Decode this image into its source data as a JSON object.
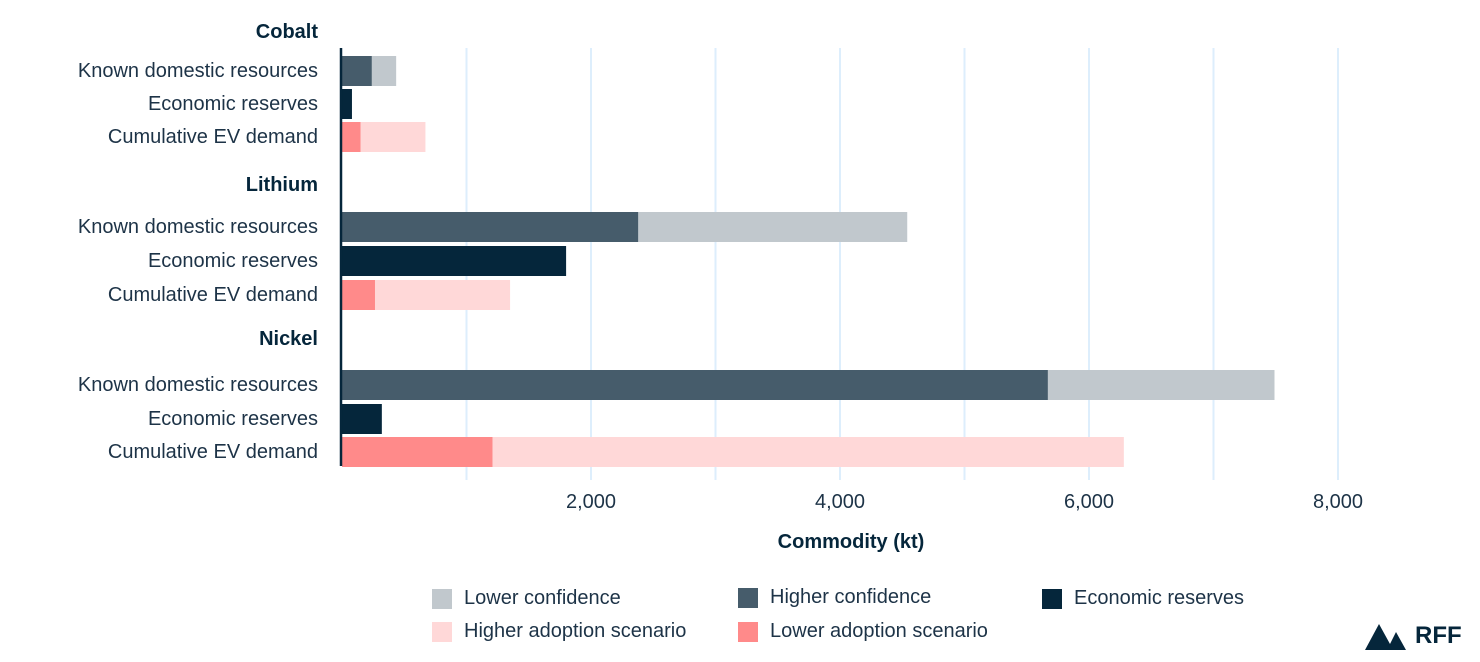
{
  "chart_data": {
    "type": "bar",
    "orientation": "horizontal",
    "stacked": true,
    "xlabel": "Commodity (kt)",
    "xlim": [
      0,
      8000
    ],
    "xticks": [
      2000,
      4000,
      6000,
      8000
    ],
    "xtick_labels": [
      "2,000",
      "4,000",
      "6,000",
      "8,000"
    ],
    "gridlines": [
      1000,
      2000,
      3000,
      4000,
      5000,
      6000,
      7000,
      8000
    ],
    "grid": true,
    "legend_placement": "bottom",
    "groups": [
      {
        "name": "Cobalt",
        "rows": [
          {
            "label": "Known domestic resources",
            "segments": [
              {
                "series": "Higher confidence",
                "value": 240
              },
              {
                "series": "Lower confidence",
                "value": 195
              }
            ]
          },
          {
            "label": "Economic reserves",
            "segments": [
              {
                "series": "Economic reserves",
                "value": 80
              }
            ]
          },
          {
            "label": "Cumulative EV demand",
            "segments": [
              {
                "series": "Lower adoption scenario",
                "value": 150
              },
              {
                "series": "Higher adoption scenario",
                "value": 520
              }
            ]
          }
        ]
      },
      {
        "name": "Lithium",
        "rows": [
          {
            "label": "Known domestic resources",
            "segments": [
              {
                "series": "Higher confidence",
                "value": 2380
              },
              {
                "series": "Lower confidence",
                "value": 2160
              }
            ]
          },
          {
            "label": "Economic reserves",
            "segments": [
              {
                "series": "Economic reserves",
                "value": 1800
              }
            ]
          },
          {
            "label": "Cumulative EV demand",
            "segments": [
              {
                "series": "Lower adoption scenario",
                "value": 265
              },
              {
                "series": "Higher adoption scenario",
                "value": 1085
              }
            ]
          }
        ]
      },
      {
        "name": "Nickel",
        "rows": [
          {
            "label": "Known domestic resources",
            "segments": [
              {
                "series": "Higher confidence",
                "value": 5670
              },
              {
                "series": "Lower confidence",
                "value": 1820
              }
            ]
          },
          {
            "label": "Economic reserves",
            "segments": [
              {
                "series": "Economic reserves",
                "value": 320
              }
            ]
          },
          {
            "label": "Cumulative EV demand",
            "segments": [
              {
                "series": "Lower adoption scenario",
                "value": 1210
              },
              {
                "series": "Higher adoption scenario",
                "value": 5070
              }
            ]
          }
        ]
      }
    ],
    "legend": [
      {
        "name": "Lower confidence",
        "color": "#c1c8cd"
      },
      {
        "name": "Higher confidence",
        "color": "#465c6b"
      },
      {
        "name": "Economic reserves",
        "color": "#05263b"
      },
      {
        "name": "Higher adoption scenario",
        "color": "#ffd8d8"
      },
      {
        "name": "Lower adoption scenario",
        "color": "#ff8a8a"
      }
    ],
    "gridline_color": "#ddeefc"
  },
  "logo": {
    "text": "RFF"
  }
}
